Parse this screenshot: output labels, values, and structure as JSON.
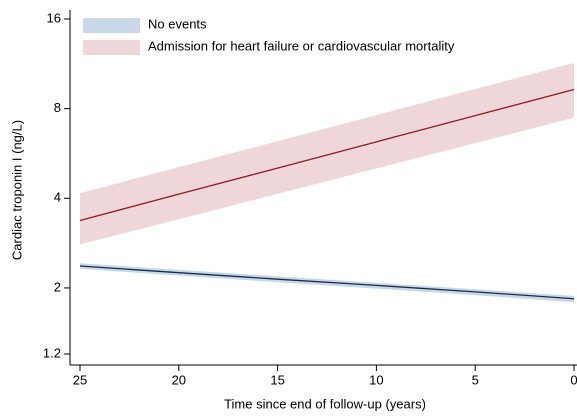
{
  "chart_data": {
    "type": "line",
    "x_label": "Time since end of follow-up (years)",
    "y_label": "Cardiac troponin I (ng/L)",
    "x": [
      25,
      20,
      15,
      10,
      5,
      0
    ],
    "xlim": [
      25,
      0
    ],
    "xticks": [
      25,
      20,
      15,
      10,
      5,
      0
    ],
    "ylim": [
      1.2,
      16
    ],
    "yticks": [
      1.2,
      2,
      4,
      8,
      16
    ],
    "log_y": true,
    "series": [
      {
        "name": "No events",
        "color": "#1c2a4e",
        "band_color": "#c9d8e7",
        "values": [
          2.37,
          2.25,
          2.14,
          2.04,
          1.94,
          1.84
        ],
        "upper": [
          2.42,
          2.3,
          2.19,
          2.08,
          1.98,
          1.88
        ],
        "lower": [
          2.32,
          2.2,
          2.09,
          1.99,
          1.89,
          1.79
        ]
      },
      {
        "name": "Admission for heart failure or cardiovascular mortality",
        "color": "#8e1d22",
        "band_color": "#eed6d9",
        "values": [
          3.37,
          4.13,
          5.05,
          6.19,
          7.58,
          9.28
        ],
        "upper": [
          4.16,
          5.09,
          6.22,
          7.61,
          9.31,
          11.4
        ],
        "lower": [
          2.8,
          3.4,
          4.14,
          5.04,
          6.13,
          7.46
        ]
      }
    ]
  }
}
